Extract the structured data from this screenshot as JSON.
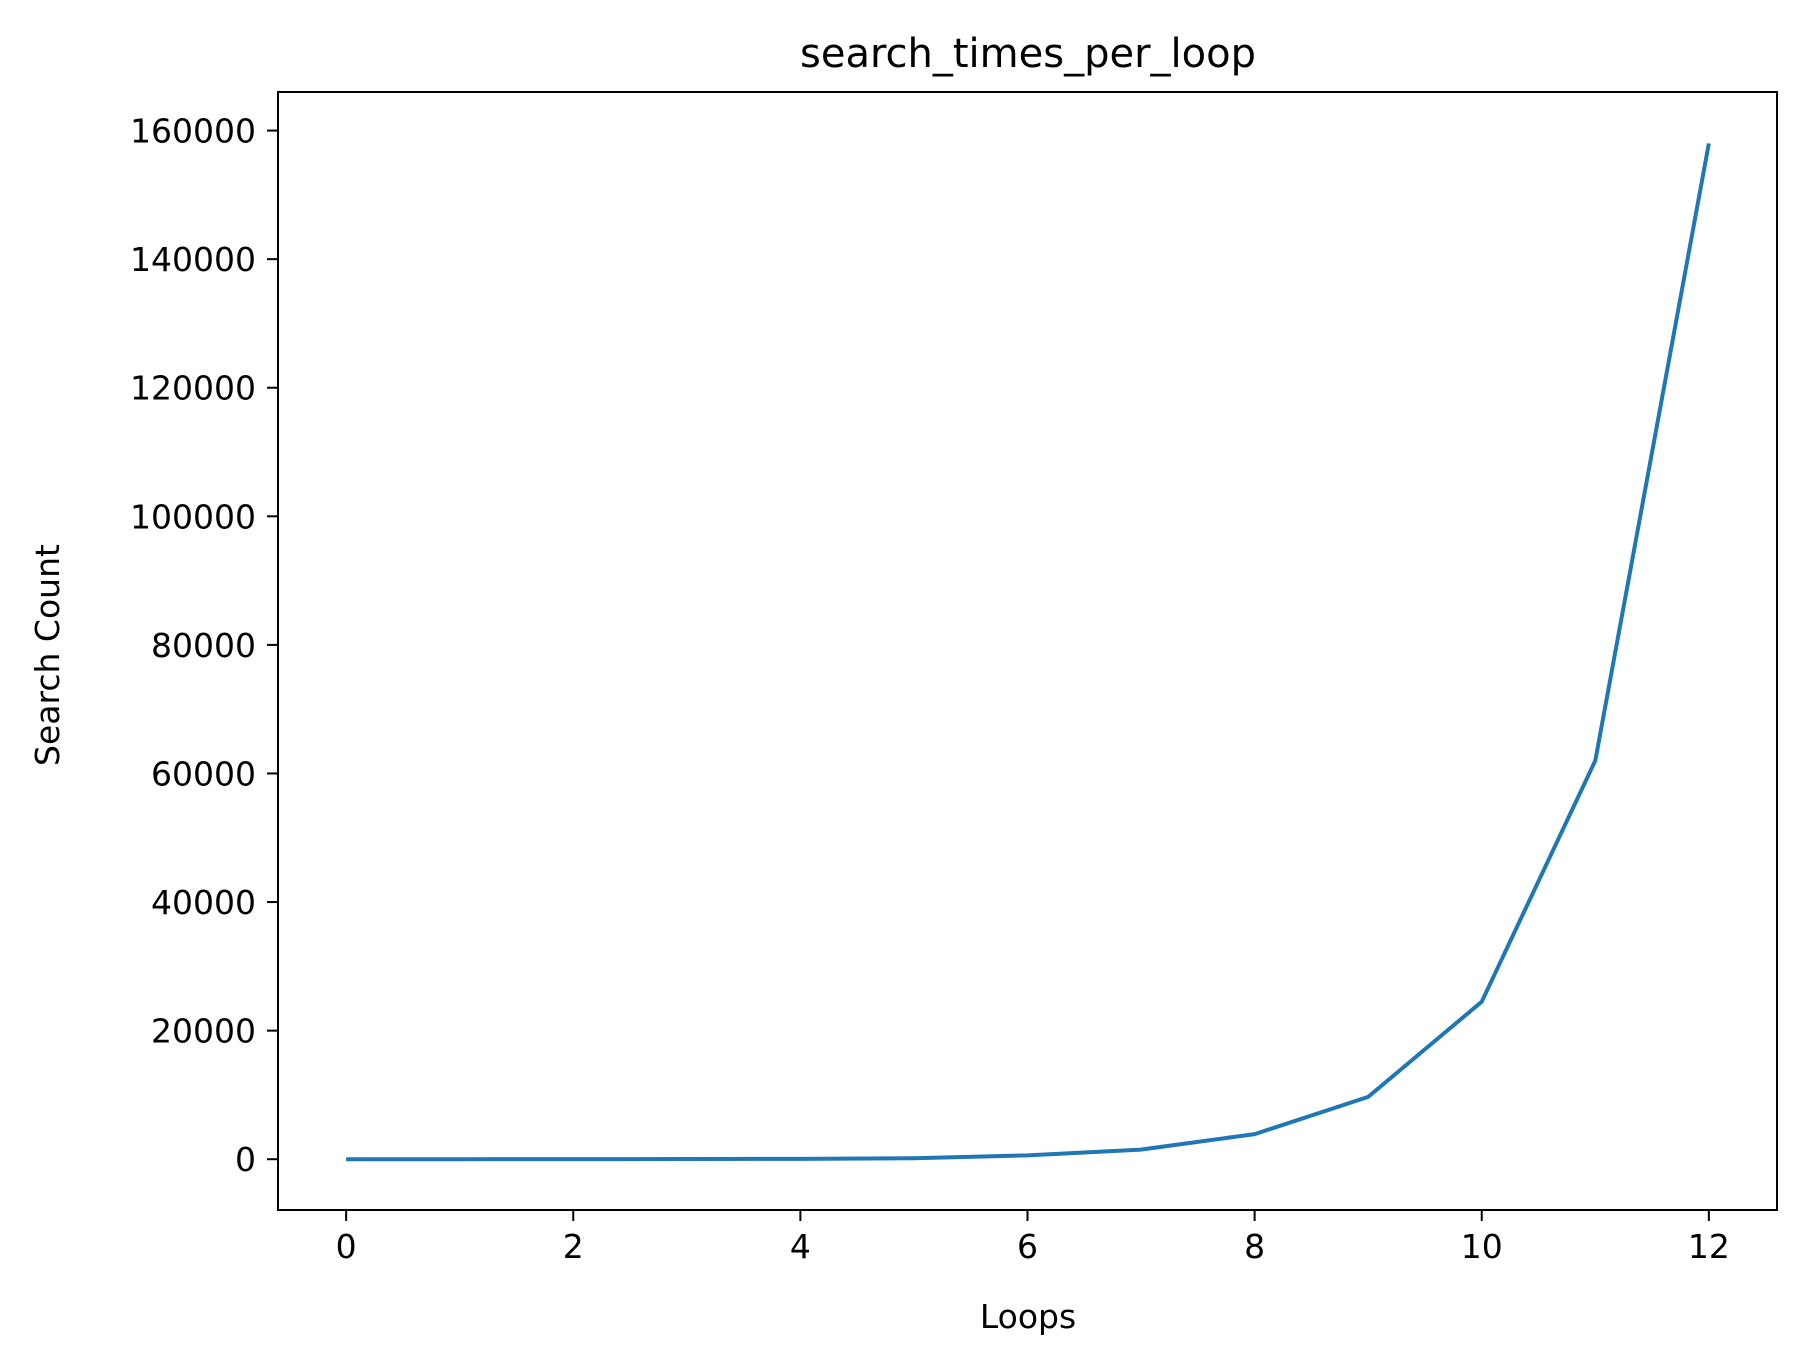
{
  "chart_data": {
    "type": "line",
    "title": "search_times_per_loop",
    "xlabel": "Loops",
    "ylabel": "Search Count",
    "xlim": [
      -0.6,
      12.6
    ],
    "ylim": [
      -7900,
      166000
    ],
    "xticks": [
      0,
      2,
      4,
      6,
      8,
      10,
      12
    ],
    "yticks": [
      0,
      20000,
      40000,
      60000,
      80000,
      100000,
      120000,
      140000,
      160000
    ],
    "grid": false,
    "legend": "none",
    "series": [
      {
        "color": "#1f77b4",
        "x": [
          0,
          1,
          2,
          3,
          4,
          5,
          6,
          7,
          8,
          9,
          10,
          11,
          12
        ],
        "y": [
          1,
          4,
          10,
          25,
          60,
          150,
          600,
          1500,
          3900,
          9700,
          24500,
          62000,
          158000
        ]
      }
    ]
  }
}
